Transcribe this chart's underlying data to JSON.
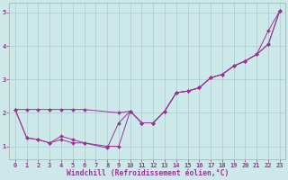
{
  "xlabel": "Windchill (Refroidissement éolien,°C)",
  "bg_color": "#cce8e8",
  "grid_color": "#aacccc",
  "line_color": "#993399",
  "xlim": [
    -0.5,
    23.5
  ],
  "ylim": [
    0.6,
    5.3
  ],
  "xticks": [
    0,
    1,
    2,
    3,
    4,
    5,
    6,
    7,
    8,
    9,
    10,
    11,
    12,
    13,
    14,
    15,
    16,
    17,
    18,
    19,
    20,
    21,
    22,
    23
  ],
  "yticks": [
    1,
    2,
    3,
    4,
    5
  ],
  "line1_x": [
    0,
    1,
    2,
    3,
    4,
    5,
    6,
    9,
    10,
    11,
    12,
    13,
    14,
    15,
    16,
    17,
    18,
    19,
    20,
    21,
    22,
    23
  ],
  "line1_y": [
    2.1,
    2.1,
    2.1,
    2.1,
    2.1,
    2.1,
    2.1,
    2.0,
    2.05,
    1.7,
    1.7,
    2.05,
    2.6,
    2.65,
    2.75,
    3.05,
    3.15,
    3.4,
    3.55,
    3.75,
    4.05,
    5.05
  ],
  "line2_x": [
    0,
    1,
    2,
    3,
    4,
    5,
    6,
    8,
    9,
    10,
    11,
    12,
    13,
    14,
    15,
    16,
    17,
    18,
    19,
    20,
    21,
    22,
    23
  ],
  "line2_y": [
    2.1,
    1.25,
    1.2,
    1.1,
    1.2,
    1.1,
    1.1,
    0.95,
    1.7,
    2.05,
    1.7,
    1.7,
    2.05,
    2.6,
    2.65,
    2.75,
    3.05,
    3.15,
    3.4,
    3.55,
    3.75,
    4.45,
    5.05
  ],
  "line3_x": [
    0,
    1,
    2,
    3,
    4,
    5,
    6,
    8,
    9,
    10,
    11,
    12,
    13,
    14,
    15,
    16,
    17,
    18,
    19,
    20,
    21,
    22,
    23
  ],
  "line3_y": [
    2.1,
    1.25,
    1.2,
    1.1,
    1.3,
    1.2,
    1.1,
    1.0,
    1.0,
    2.05,
    1.7,
    1.7,
    2.05,
    2.6,
    2.65,
    2.75,
    3.05,
    3.15,
    3.4,
    3.55,
    3.75,
    4.05,
    5.05
  ],
  "marker": "D",
  "marker_size": 2.0,
  "linewidth": 0.7,
  "xlabel_fontsize": 5.8,
  "tick_fontsize": 5.0,
  "tick_color": "#993399",
  "label_color": "#993399",
  "spine_color": "#aaaaaa"
}
